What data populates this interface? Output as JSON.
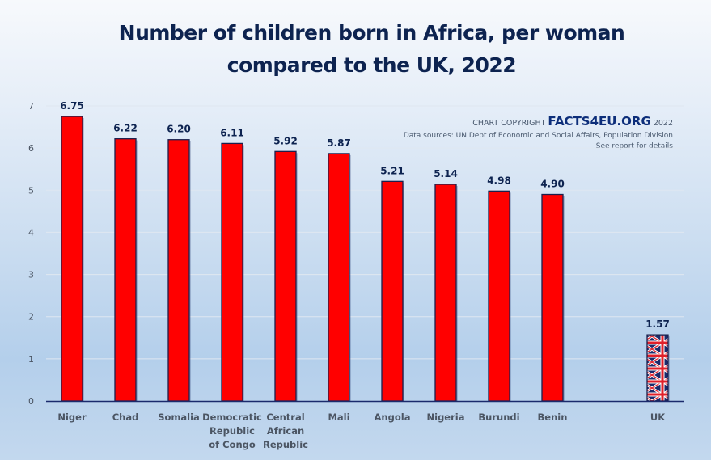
{
  "chart_data": {
    "type": "bar",
    "title": "Number of children born in Africa, per woman",
    "subtitle": "compared to the UK, 2022",
    "xlabel": "",
    "ylabel": "",
    "ylim": [
      0,
      7
    ],
    "yticks": [
      "0",
      "1",
      "2",
      "3",
      "4",
      "5",
      "6",
      "7"
    ],
    "grid": true,
    "categories": [
      [
        "Niger"
      ],
      [
        "Chad"
      ],
      [
        "Somalia"
      ],
      [
        "Democratic",
        "Republic",
        "of Congo"
      ],
      [
        "Central",
        "African",
        "Republic"
      ],
      [
        "Mali"
      ],
      [
        "Angola"
      ],
      [
        "Nigeria"
      ],
      [
        "Burundi"
      ],
      [
        "Benin"
      ],
      [
        "UK"
      ]
    ],
    "values": [
      6.75,
      6.22,
      6.2,
      6.11,
      5.92,
      5.87,
      5.21,
      5.14,
      4.98,
      4.9,
      1.57
    ],
    "value_labels": [
      "6.75",
      "6.22",
      "6.20",
      "6.11",
      "5.92",
      "5.87",
      "5.21",
      "5.14",
      "4.98",
      "4.90",
      "1.57"
    ],
    "bar_styles": [
      "red",
      "red",
      "red",
      "red",
      "red",
      "red",
      "red",
      "red",
      "red",
      "red",
      "union-jack-pattern"
    ]
  },
  "credit": {
    "copyright_prefix": "CHART COPYRIGHT",
    "brand": "FACTS4EU.ORG",
    "year": "2022",
    "sources": "Data sources: UN Dept of Economic and Social Affairs, Population Division",
    "note": "See report for details"
  },
  "colors": {
    "bar": "#ff0000",
    "bar_outline": "#1a1f4d",
    "title": "#0d2350",
    "axis": "#1a2a6c",
    "grid": "#dfe7f1",
    "flag_blue": "#1b2a6b",
    "flag_red": "#e0202a",
    "flag_white": "#ffffff"
  }
}
